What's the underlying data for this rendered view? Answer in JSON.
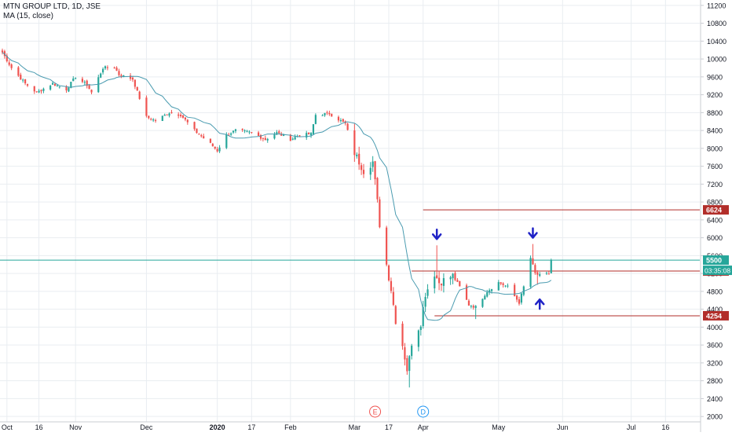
{
  "header": {
    "symbol_line": "MTN GROUP LTD, 1D, JSE",
    "indicator_line": "MA (15, close)"
  },
  "colors": {
    "up": "#26a69a",
    "down": "#ef5350",
    "ma": "#4a9bb0",
    "grid": "#e9edf1",
    "axis_text": "#131722",
    "level_line": "#b22e2a",
    "price_line": "#26a69a",
    "arrow": "#1f22c6"
  },
  "chart_data": {
    "type": "candlestick",
    "title": "MTN GROUP LTD, 1D, JSE",
    "indicator": "MA (15, close)",
    "y_range": [
      1880,
      11320
    ],
    "y_ticks": [
      2000,
      2400,
      2800,
      3200,
      3600,
      4000,
      4400,
      4800,
      5200,
      5600,
      6000,
      6400,
      6800,
      7200,
      7600,
      8000,
      8400,
      8800,
      9200,
      9600,
      10000,
      10400,
      10800,
      11200
    ],
    "x_range": [
      "2019-09-30",
      "2020-07-31"
    ],
    "x_ticks": [
      {
        "date": "2019-10-02",
        "label": "Oct"
      },
      {
        "date": "2019-10-16",
        "label": "16"
      },
      {
        "date": "2019-11-01",
        "label": "Nov"
      },
      {
        "date": "2019-12-02",
        "label": "Dec"
      },
      {
        "date": "2020-01-02",
        "label": "2020",
        "bold": true
      },
      {
        "date": "2020-01-17",
        "label": "17"
      },
      {
        "date": "2020-02-03",
        "label": "Feb"
      },
      {
        "date": "2020-03-02",
        "label": "Mar"
      },
      {
        "date": "2020-03-17",
        "label": "17"
      },
      {
        "date": "2020-04-01",
        "label": "Apr"
      },
      {
        "date": "2020-05-04",
        "label": "May"
      },
      {
        "date": "2020-06-01",
        "label": "Jun"
      },
      {
        "date": "2020-07-01",
        "label": "Jul"
      },
      {
        "date": "2020-07-16",
        "label": "16"
      }
    ],
    "events": [
      {
        "date": "2020-03-11",
        "label": "E",
        "color": "#ef5350"
      },
      {
        "date": "2020-04-01",
        "label": "D",
        "color": "#2196f3"
      }
    ],
    "horizontal_levels": [
      {
        "value": 6624,
        "label": "6624",
        "from_date": "2020-04-01"
      },
      {
        "value": 5256,
        "label": "5256",
        "from_date": "2020-03-27"
      },
      {
        "value": 4254,
        "label": "4254",
        "from_date": "2020-04-06"
      }
    ],
    "last_price": {
      "value": 5500,
      "label": "5500",
      "countdown": "03:35:08"
    },
    "arrows": [
      {
        "date": "2020-04-07",
        "value": 5830,
        "direction": "down"
      },
      {
        "date": "2020-05-19",
        "value": 5860,
        "direction": "down"
      },
      {
        "date": "2020-05-22",
        "value": 4760,
        "direction": "up"
      }
    ],
    "anchors": [
      [
        "2019-09-30",
        10150
      ],
      [
        "2019-10-04",
        9800
      ],
      [
        "2019-10-10",
        9450
      ],
      [
        "2019-10-15",
        9250
      ],
      [
        "2019-10-22",
        9450
      ],
      [
        "2019-10-28",
        9320
      ],
      [
        "2019-11-01",
        9600
      ],
      [
        "2019-11-06",
        9420
      ],
      [
        "2019-11-08",
        9250
      ],
      [
        "2019-11-13",
        9800
      ],
      [
        "2019-11-18",
        9820
      ],
      [
        "2019-11-20",
        9650
      ],
      [
        "2019-11-26",
        9550
      ],
      [
        "2019-12-02",
        8700
      ],
      [
        "2019-12-06",
        8620
      ],
      [
        "2019-12-12",
        8800
      ],
      [
        "2019-12-17",
        8750
      ],
      [
        "2019-12-23",
        8400
      ],
      [
        "2019-12-30",
        8100
      ],
      [
        "2020-01-02",
        7950
      ],
      [
        "2020-01-06",
        8300
      ],
      [
        "2020-01-10",
        8400
      ],
      [
        "2020-01-17",
        8350
      ],
      [
        "2020-01-23",
        8200
      ],
      [
        "2020-01-28",
        8350
      ],
      [
        "2020-02-03",
        8200
      ],
      [
        "2020-02-07",
        8300
      ],
      [
        "2020-02-12",
        8320
      ],
      [
        "2020-02-14",
        8750
      ],
      [
        "2020-02-20",
        8780
      ],
      [
        "2020-02-27",
        8550
      ],
      [
        "2020-03-02",
        7900
      ],
      [
        "2020-03-06",
        7500
      ],
      [
        "2020-03-10",
        7700
      ],
      [
        "2020-03-12",
        6800
      ],
      [
        "2020-03-13",
        6300
      ],
      [
        "2020-03-16",
        5400
      ],
      [
        "2020-03-18",
        4850
      ],
      [
        "2020-03-20",
        4150
      ],
      [
        "2020-03-23",
        3600
      ],
      [
        "2020-03-25",
        3050
      ],
      [
        "2020-03-26",
        3300
      ],
      [
        "2020-03-27",
        3650
      ],
      [
        "2020-03-31",
        4100
      ],
      [
        "2020-04-02",
        4750
      ],
      [
        "2020-04-06",
        5200
      ],
      [
        "2020-04-08",
        5000
      ],
      [
        "2020-04-14",
        5150
      ],
      [
        "2020-04-17",
        4900
      ],
      [
        "2020-04-21",
        4500
      ],
      [
        "2020-04-24",
        4450
      ],
      [
        "2020-04-29",
        4800
      ],
      [
        "2020-05-04",
        5000
      ],
      [
        "2020-05-08",
        4900
      ],
      [
        "2020-05-13",
        4550
      ],
      [
        "2020-05-15",
        4900
      ],
      [
        "2020-05-18",
        5550
      ],
      [
        "2020-05-20",
        5200
      ],
      [
        "2020-05-22",
        5150
      ],
      [
        "2020-05-26",
        5200
      ],
      [
        "2020-05-27",
        5500
      ]
    ],
    "marks": [
      [
        "2020-03-26",
        2650
      ],
      [
        "2020-04-07",
        5830
      ],
      [
        "2020-04-24",
        4180
      ],
      [
        "2020-05-19",
        5860
      ],
      [
        "2020-05-21",
        4950
      ]
    ]
  }
}
